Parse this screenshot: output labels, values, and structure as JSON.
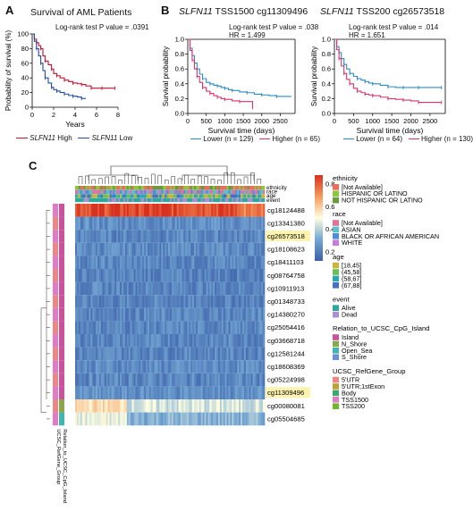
{
  "panels": {
    "a": "A",
    "b": "B",
    "c": "C"
  },
  "chart_data": [
    {
      "type": "line",
      "title": "Survival of AML Patients",
      "annotation": "Log-rank test P value = .0391",
      "xlabel": "Years",
      "ylabel": "Probability of survival (%)",
      "xlim": [
        0,
        8
      ],
      "ylim": [
        0,
        100
      ],
      "xticks": [
        "0",
        "2",
        "4",
        "6",
        "8"
      ],
      "yticks": [
        "0",
        "20",
        "40",
        "60",
        "80",
        "100"
      ],
      "legend": {
        "placement": "bottom",
        "items": [
          {
            "gene": "SLFN11",
            "level": "High",
            "color": "#c8102e"
          },
          {
            "gene": "SLFN11",
            "level": "Low",
            "color": "#1f4e9c"
          }
        ]
      },
      "series": [
        {
          "name": "SLFN11 High",
          "color": "#c8102e",
          "x": [
            0,
            0.2,
            0.4,
            0.6,
            0.8,
            1.0,
            1.2,
            1.5,
            1.8,
            2.0,
            2.3,
            2.6,
            3.0,
            3.4,
            3.8,
            4.2,
            4.6,
            5.0,
            5.5,
            6.0,
            6.5,
            7.0,
            7.7
          ],
          "y": [
            100,
            93,
            88,
            84,
            80,
            70,
            63,
            58,
            52,
            46,
            43,
            40,
            37,
            35,
            33,
            32,
            31,
            29,
            26,
            26,
            26,
            26,
            26
          ]
        },
        {
          "name": "SLFN11 Low",
          "color": "#1f4e9c",
          "x": [
            0,
            0.2,
            0.4,
            0.6,
            0.8,
            1.0,
            1.2,
            1.5,
            1.8,
            2.0,
            2.3,
            2.6,
            3.0,
            3.4,
            3.8,
            4.2,
            4.6,
            5.0
          ],
          "y": [
            100,
            90,
            80,
            70,
            60,
            50,
            40,
            33,
            27,
            24,
            22,
            20,
            18,
            16,
            15,
            14,
            12,
            12
          ]
        }
      ]
    },
    {
      "type": "line",
      "title_gene": "SLFN11",
      "title_rest": "TSS1500 cg11309496",
      "annotation": "Log-rank test P value = .038",
      "hr": "HR = 1.499",
      "xlabel": "Survival time (days)",
      "ylabel": "Survival probability",
      "xlim": [
        0,
        2900
      ],
      "ylim": [
        0,
        1
      ],
      "xticks": [
        "0",
        "500",
        "1000",
        "1500",
        "2000",
        "2500"
      ],
      "yticks": [
        "0.0",
        "0.2",
        "0.4",
        "0.6",
        "0.8",
        "1.0"
      ],
      "legend": {
        "placement": "bottom",
        "items": [
          "Lower (n = 129)",
          "Higher (n = 65)"
        ]
      },
      "series": [
        {
          "name": "Lower (n = 129)",
          "color": "#2b8cc4",
          "x": [
            0,
            60,
            120,
            180,
            250,
            320,
            400,
            500,
            600,
            700,
            800,
            900,
            1000,
            1100,
            1200,
            1400,
            1600,
            1800,
            2000,
            2200,
            2400,
            2800
          ],
          "y": [
            1.0,
            0.88,
            0.78,
            0.68,
            0.6,
            0.53,
            0.47,
            0.42,
            0.4,
            0.38,
            0.37,
            0.35,
            0.34,
            0.32,
            0.31,
            0.29,
            0.28,
            0.26,
            0.25,
            0.24,
            0.23,
            0.23
          ]
        },
        {
          "name": "Higher (n = 65)",
          "color": "#d6336c",
          "x": [
            0,
            60,
            120,
            180,
            250,
            320,
            400,
            500,
            600,
            700,
            800,
            900,
            1000,
            1200,
            1400,
            1600,
            1750
          ],
          "y": [
            1.0,
            0.85,
            0.72,
            0.6,
            0.5,
            0.42,
            0.35,
            0.3,
            0.27,
            0.24,
            0.22,
            0.2,
            0.19,
            0.17,
            0.16,
            0.16,
            0.08
          ]
        }
      ]
    },
    {
      "type": "line",
      "title_gene": "SLFN11",
      "title_rest": "TSS200 cg26573518",
      "annotation": "Log-rank test P value = .014",
      "hr": "HR = 1.651",
      "xlabel": "Survival time (days)",
      "ylabel": "Survival probability",
      "xlim": [
        0,
        2900
      ],
      "ylim": [
        0,
        1
      ],
      "xticks": [
        "0",
        "500",
        "1000",
        "1500",
        "2000",
        "2500"
      ],
      "yticks": [
        "0.0",
        "0.2",
        "0.4",
        "0.6",
        "0.8",
        "1.0"
      ],
      "legend": {
        "placement": "bottom",
        "items": [
          "Lower (n = 64)",
          "Higher (n = 130)"
        ]
      },
      "series": [
        {
          "name": "Lower (n = 64)",
          "color": "#2b8cc4",
          "x": [
            0,
            60,
            120,
            180,
            250,
            320,
            400,
            500,
            600,
            700,
            800,
            900,
            1000,
            1200,
            1400,
            1600,
            1800,
            2000,
            2200,
            2400,
            2800
          ],
          "y": [
            1.0,
            0.9,
            0.82,
            0.74,
            0.66,
            0.6,
            0.54,
            0.5,
            0.47,
            0.45,
            0.43,
            0.41,
            0.4,
            0.38,
            0.36,
            0.35,
            0.35,
            0.35,
            0.35,
            0.35,
            0.35
          ]
        },
        {
          "name": "Higher (n = 130)",
          "color": "#d6336c",
          "x": [
            0,
            60,
            120,
            180,
            250,
            320,
            400,
            500,
            600,
            700,
            800,
            900,
            1000,
            1200,
            1400,
            1600,
            1800,
            2000,
            2200,
            2400,
            2800
          ],
          "y": [
            1.0,
            0.86,
            0.74,
            0.64,
            0.54,
            0.46,
            0.4,
            0.34,
            0.3,
            0.28,
            0.26,
            0.25,
            0.24,
            0.22,
            0.2,
            0.19,
            0.18,
            0.17,
            0.15,
            0.15,
            0.15
          ]
        }
      ]
    },
    {
      "type": "heatmap",
      "rows": [
        "cg18124488",
        "cg13341380",
        "cg26573518",
        "cg18108623",
        "cg18411103",
        "cg08764758",
        "cg10911913",
        "cg01348733",
        "cg14380270",
        "cg25054416",
        "cg03668718",
        "cg12581244",
        "cg18608369",
        "cg05224998",
        "cg11309496",
        "cg00080081",
        "cg05504685"
      ],
      "row_values": [
        0.85,
        0.22,
        0.2,
        0.21,
        0.2,
        0.19,
        0.2,
        0.19,
        0.2,
        0.2,
        0.2,
        0.2,
        0.21,
        0.2,
        0.22,
        0.4,
        0.3
      ],
      "highlighted_rows": [
        "cg26573518",
        "cg11309496"
      ],
      "highlight_color": "#fdf3b0",
      "column_tracks": [
        "ethnicity",
        "race",
        "age",
        "event"
      ],
      "row_tracks": [
        "UCSC_RefGene_Group",
        "Relation_to_UCSC_CpG_Island"
      ],
      "scale": {
        "ticks": [
          "0.8",
          "0.6",
          "0.4",
          "0.2"
        ],
        "colors": [
          "#3b5fa8",
          "#74a7d4",
          "#ffffe0",
          "#f59a5c",
          "#d7301f"
        ]
      },
      "legends": [
        {
          "title": "ethnicity",
          "items": [
            {
              "label": "[Not Available]",
              "color": "#ed6d5c"
            },
            {
              "label": "HISPANIC OR LATINO",
              "color": "#8cc63f"
            },
            {
              "label": "NOT HISPANIC OR LATINO",
              "color": "#6a9a3c"
            }
          ]
        },
        {
          "title": "race",
          "items": [
            {
              "label": "[Not Available]",
              "color": "#e56f9b"
            },
            {
              "label": "ASIAN",
              "color": "#5bc0c7"
            },
            {
              "label": "BLACK OR AFRICAN AMERICAN",
              "color": "#4c8fd6"
            },
            {
              "label": "WHITE",
              "color": "#c77cdb"
            }
          ]
        },
        {
          "title": "age",
          "items": [
            {
              "label": "[18,45]",
              "color": "#c9b53a"
            },
            {
              "label": "(45,58]",
              "color": "#6bbf59"
            },
            {
              "label": "(58,67]",
              "color": "#2aa7b6"
            },
            {
              "label": "(67,88]",
              "color": "#4a6fc1"
            }
          ]
        },
        {
          "title": "event",
          "items": [
            {
              "label": "Alive",
              "color": "#2fa89a"
            },
            {
              "label": "Dead",
              "color": "#aa8fd6"
            }
          ]
        },
        {
          "title": "Relation_to_UCSC_CpG_Island",
          "items": [
            {
              "label": "Island",
              "color": "#c8539b"
            },
            {
              "label": "N_Shore",
              "color": "#8aa84b"
            },
            {
              "label": "Open_Sea",
              "color": "#3fb7b0"
            },
            {
              "label": "S_Shore",
              "color": "#6a8fd8"
            }
          ]
        },
        {
          "title": "UCSC_RefGene_Group",
          "items": [
            {
              "label": "5'UTR",
              "color": "#f08585"
            },
            {
              "label": "5'UTR;1stExon",
              "color": "#b7a33a"
            },
            {
              "label": "Body",
              "color": "#3da86a"
            },
            {
              "label": "TSS1500",
              "color": "#e17bc8"
            },
            {
              "label": "TSS200",
              "color": "#6cb82a"
            }
          ]
        }
      ]
    }
  ]
}
